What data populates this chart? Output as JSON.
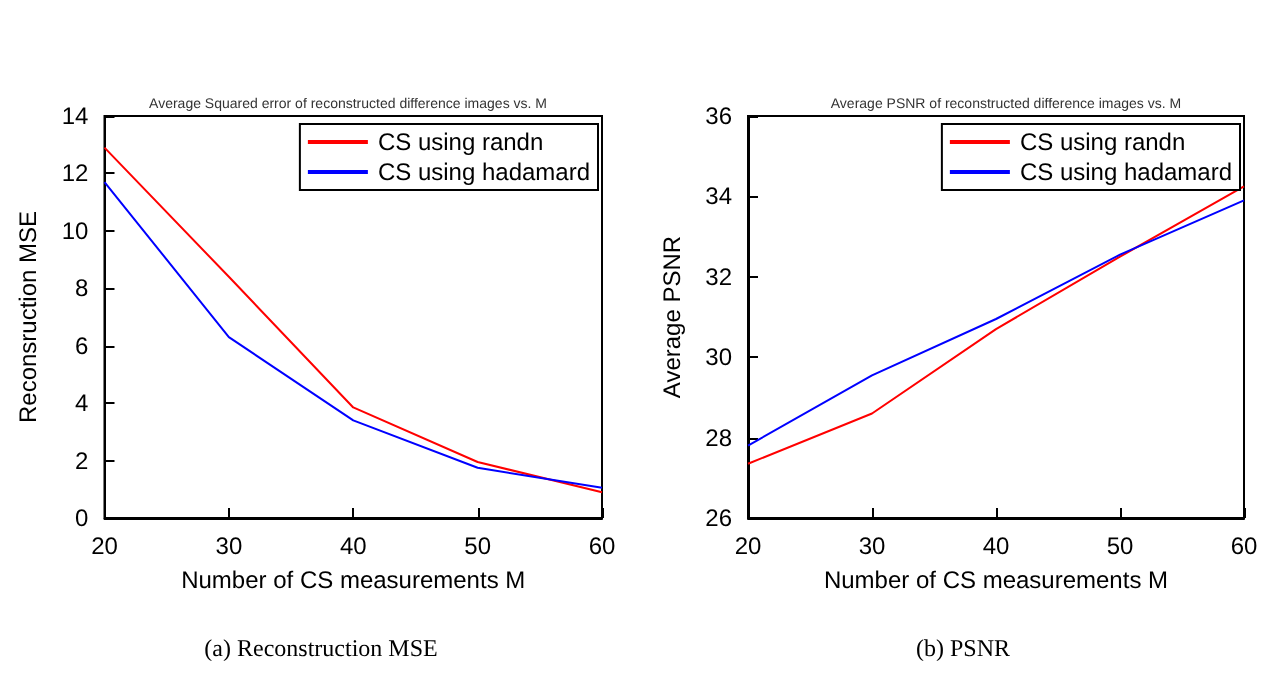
{
  "chart_data": [
    {
      "type": "line",
      "title": "Average Squared error of reconstructed difference images vs. M",
      "xlabel": "Number of CS measurements M",
      "ylabel": "Reconsruction MSE",
      "annotations": [
        "(a) Reconstruction MSE"
      ],
      "x": [
        20,
        30,
        40,
        50,
        60
      ],
      "series": [
        {
          "name": "CS using randn",
          "color": "#ff0000",
          "values": [
            12.9,
            8.4,
            3.85,
            1.95,
            0.9
          ]
        },
        {
          "name": "CS using hadamard",
          "color": "#0000ff",
          "values": [
            11.7,
            6.3,
            3.4,
            1.75,
            1.05
          ]
        }
      ],
      "xlim": [
        20,
        60
      ],
      "ylim": [
        0,
        14
      ],
      "xticks": [
        20,
        30,
        40,
        50,
        60
      ],
      "yticks": [
        0,
        2,
        4,
        6,
        8,
        10,
        12,
        14
      ],
      "legend": "top right",
      "marker": "none"
    },
    {
      "type": "line",
      "title": "Average PSNR of reconstructed difference images vs. M",
      "xlabel": "Number of CS measurements M",
      "ylabel": "Average PSNR",
      "annotations": [
        "(b) PSNR"
      ],
      "x": [
        20,
        30,
        40,
        50,
        60
      ],
      "series": [
        {
          "name": "CS using randn",
          "color": "#ff0000",
          "values": [
            27.35,
            28.6,
            30.7,
            32.5,
            34.25
          ]
        },
        {
          "name": "CS using hadamard",
          "color": "#0000ff",
          "values": [
            27.8,
            29.55,
            30.95,
            32.55,
            33.9
          ]
        }
      ],
      "xlim": [
        20,
        60
      ],
      "ylim": [
        26,
        36
      ],
      "xticks": [
        20,
        30,
        40,
        50,
        60
      ],
      "yticks": [
        26,
        28,
        30,
        32,
        34,
        36
      ],
      "legend": "top right",
      "marker": "none"
    }
  ]
}
